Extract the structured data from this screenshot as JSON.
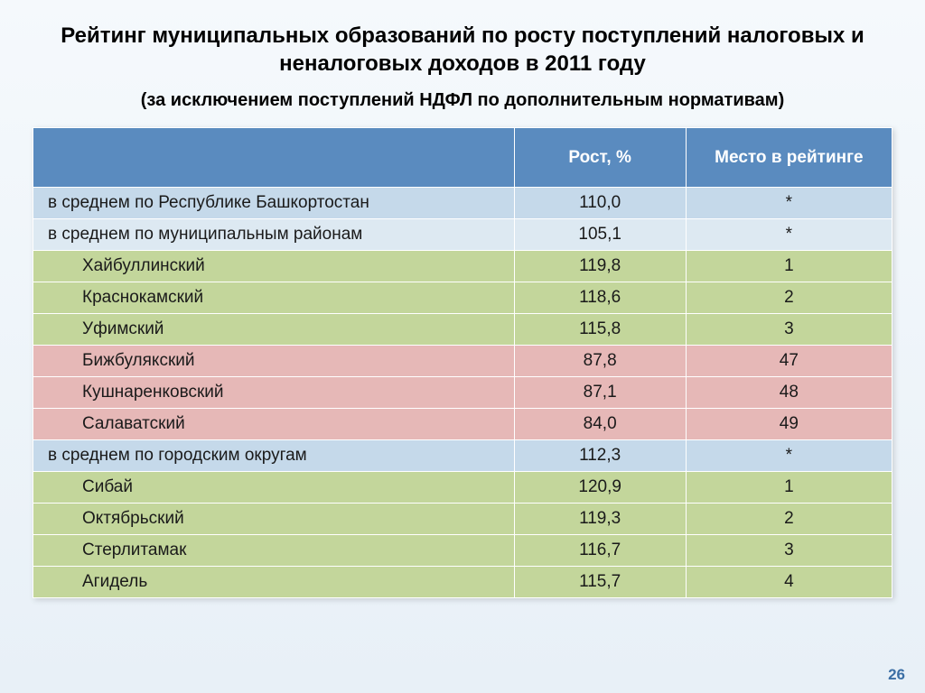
{
  "title": "Рейтинг муниципальных образований по росту поступлений налоговых и неналоговых доходов в 2011 году",
  "subtitle": "(за исключением поступлений НДФЛ по дополнительным нормативам)",
  "columns": {
    "name": "",
    "growth": "Рост, %",
    "rank": "Место в рейтинге"
  },
  "rows": [
    {
      "name": "в среднем по Республике Башкортостан",
      "growth": "110,0",
      "rank": "*",
      "cls": "blue",
      "indent": false
    },
    {
      "name": "в среднем по муниципальным районам",
      "growth": "105,1",
      "rank": "*",
      "cls": "lightblue",
      "indent": false
    },
    {
      "name": "Хайбуллинский",
      "growth": "119,8",
      "rank": "1",
      "cls": "green",
      "indent": true
    },
    {
      "name": "Краснокамский",
      "growth": "118,6",
      "rank": "2",
      "cls": "green",
      "indent": true
    },
    {
      "name": "Уфимский",
      "growth": "115,8",
      "rank": "3",
      "cls": "green",
      "indent": true
    },
    {
      "name": "Бижбулякский",
      "growth": "87,8",
      "rank": "47",
      "cls": "red",
      "indent": true
    },
    {
      "name": "Кушнаренковский",
      "growth": "87,1",
      "rank": "48",
      "cls": "red",
      "indent": true
    },
    {
      "name": "Салаватский",
      "growth": "84,0",
      "rank": "49",
      "cls": "red",
      "indent": true
    },
    {
      "name": "в среднем по городским округам",
      "growth": "112,3",
      "rank": "*",
      "cls": "blue",
      "indent": false
    },
    {
      "name": "Сибай",
      "growth": "120,9",
      "rank": "1",
      "cls": "green",
      "indent": true
    },
    {
      "name": "Октябрьский",
      "growth": "119,3",
      "rank": "2",
      "cls": "green",
      "indent": true
    },
    {
      "name": "Стерлитамак",
      "growth": "116,7",
      "rank": "3",
      "cls": "green",
      "indent": true
    },
    {
      "name": "Агидель",
      "growth": "115,7",
      "rank": "4",
      "cls": "green",
      "indent": true
    }
  ],
  "page_number": "26",
  "colors": {
    "header_bg": "#5a8bbf",
    "blue_row": "#c5d9ea",
    "lightblue_row": "#dde9f2",
    "green_row": "#c3d69b",
    "red_row": "#e6b8b7",
    "border": "#ffffff",
    "page_bg_top": "#f5f9fc",
    "page_bg_bottom": "#e8f0f7"
  },
  "fonts": {
    "title_size": 24,
    "subtitle_size": 20,
    "cell_size": 19
  }
}
